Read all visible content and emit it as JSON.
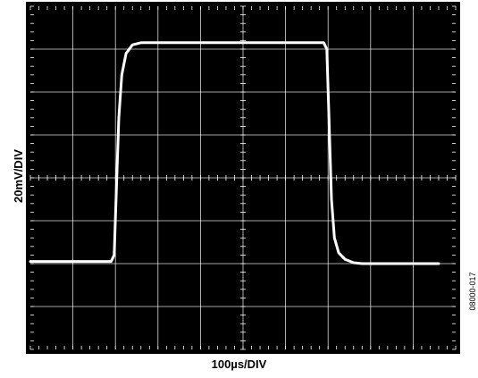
{
  "chart_data": {
    "type": "line",
    "title": "",
    "xlabel": "100µs/DIV",
    "ylabel": "20mV/DIV",
    "figure_id": "08000-017",
    "grid": true,
    "x_divisions": 10,
    "y_divisions": 8,
    "xlim": [
      0,
      10
    ],
    "ylim": [
      0,
      8
    ],
    "background": "#000000",
    "trace_color": "#ffffff",
    "grid_color": "#ffffff",
    "series": [
      {
        "x": [
          0,
          0.5,
          1.0,
          1.5,
          1.9,
          1.97,
          2.02,
          2.08,
          2.15,
          2.25,
          2.4,
          2.6,
          2.8,
          3.0,
          4.0,
          5.0,
          6.0,
          6.9,
          6.97,
          7.02,
          7.08,
          7.15,
          7.25,
          7.4,
          7.6,
          7.8,
          8.0,
          9.0,
          9.6
        ],
        "y": [
          2.05,
          2.05,
          2.05,
          2.05,
          2.05,
          2.2,
          3.7,
          5.4,
          6.4,
          6.9,
          7.1,
          7.15,
          7.15,
          7.15,
          7.15,
          7.15,
          7.15,
          7.15,
          7.0,
          5.4,
          3.5,
          2.6,
          2.25,
          2.1,
          2.02,
          2.0,
          2.0,
          2.0,
          2.0
        ]
      }
    ]
  }
}
